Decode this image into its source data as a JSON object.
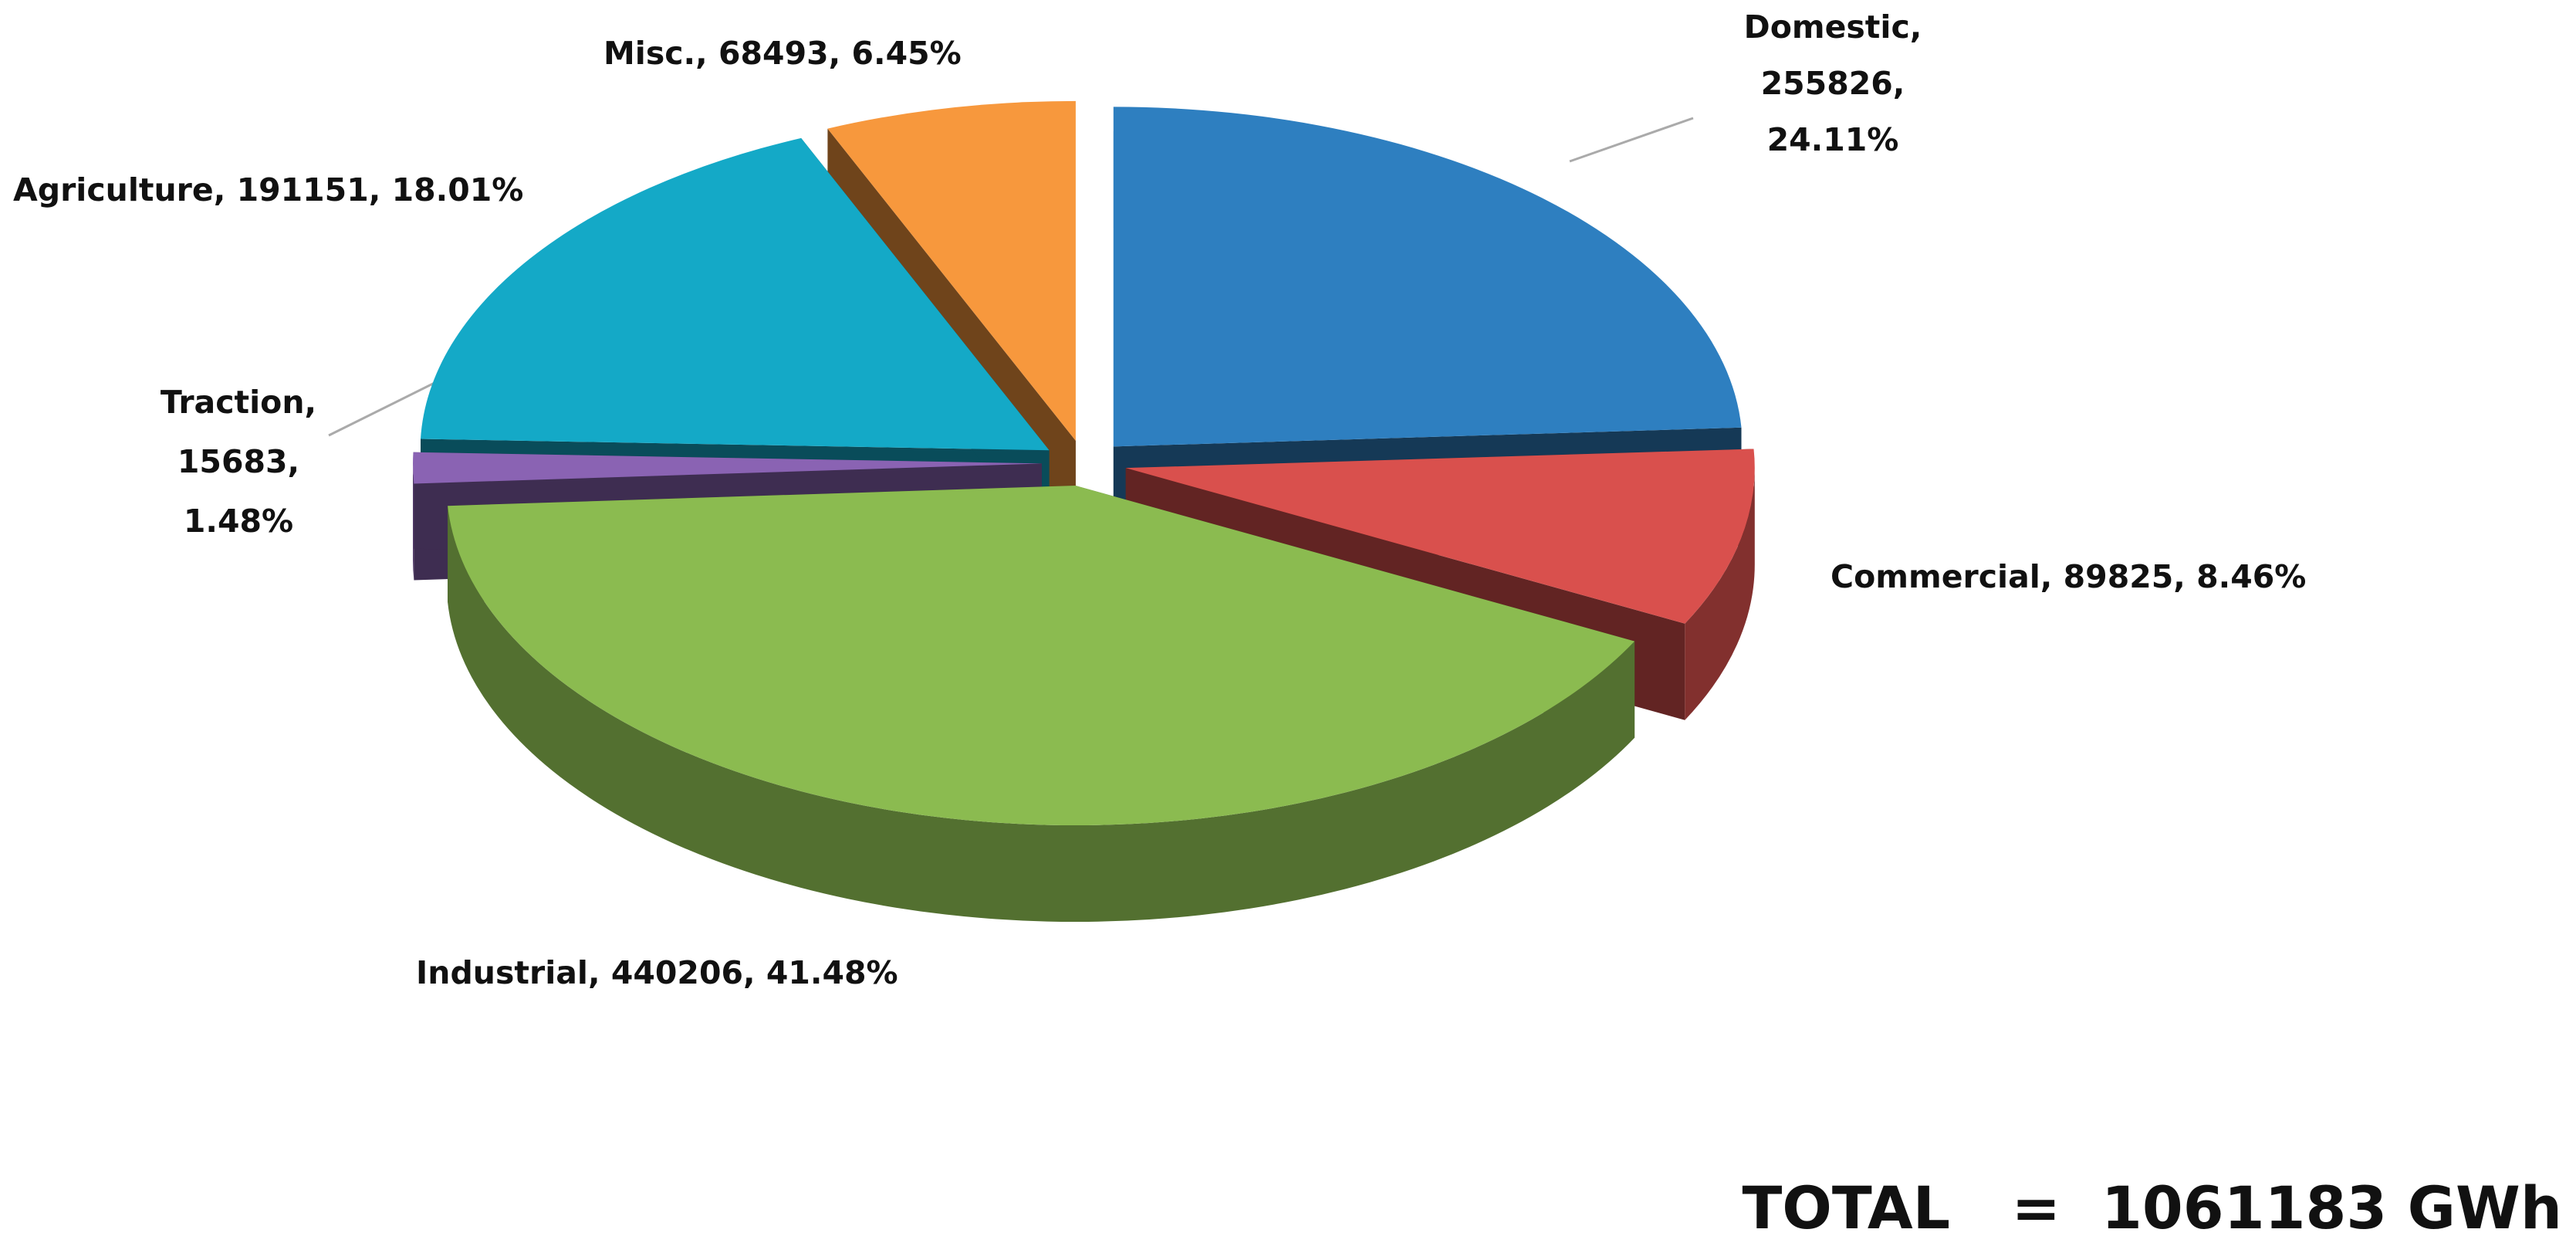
{
  "chart_data": {
    "type": "pie3d",
    "categories": [
      "Domestic",
      "Commercial",
      "Industrial",
      "Traction",
      "Agriculture",
      "Misc."
    ],
    "values": [
      255826,
      89825,
      440206,
      15683,
      191151,
      68493
    ],
    "value_labels": [
      [
        "Domestic,",
        "255826,",
        "24.11%"
      ],
      [
        "Commercial, 89825, 8.46%"
      ],
      [
        "Industrial, 440206, 41.48%"
      ],
      [
        "Traction,",
        "15683,",
        "1.48%"
      ],
      [
        "Agriculture, 191151, 18.01%"
      ],
      [
        "Misc., 68493, 6.45%"
      ]
    ],
    "colors": [
      "#2e7fc0",
      "#d9504d",
      "#8bbb50",
      "#8a63b3",
      "#14a9c7",
      "#f7983d"
    ],
    "annotation": "TOTAL   =  1061183 GWh"
  }
}
